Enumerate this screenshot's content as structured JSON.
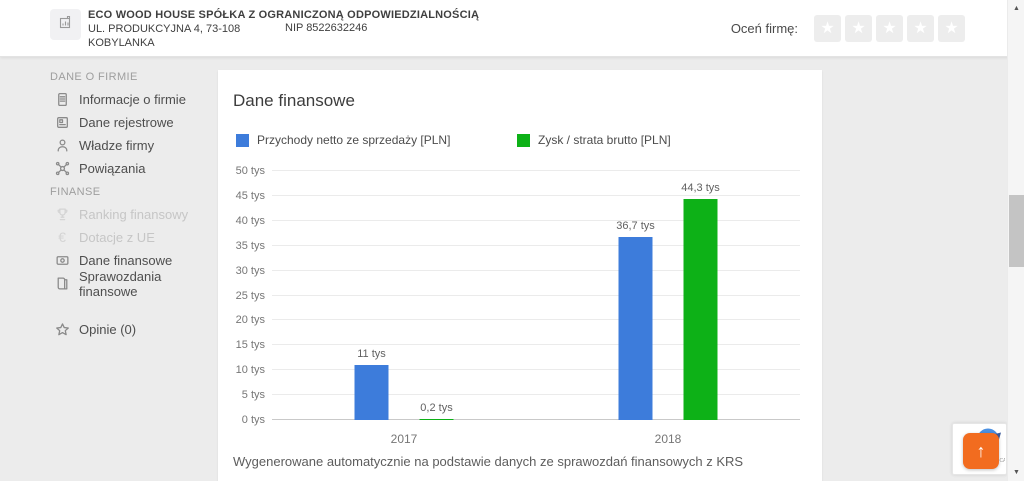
{
  "header": {
    "company_name": "ECO WOOD HOUSE SPÓŁKA Z OGRANICZONĄ ODPOWIEDZIALNOŚCIĄ",
    "address_line1": "UL. PRODUKCYJNA 4, 73-108",
    "address_line2": "KOBYLANKA",
    "nip": "NIP 8522632246",
    "rate_label": "Oceń firmę:",
    "rating_stars_total": 5,
    "rating_stars_filled": 0
  },
  "icons": {
    "star": "★",
    "up_arrow": "↑",
    "scroll_up": "▲",
    "scroll_down": "▼"
  },
  "sidebar": {
    "sections": [
      {
        "header": "DANE O FIRMIE",
        "items": [
          {
            "label": "Informacje o firmie",
            "icon": "document-icon",
            "disabled": false
          },
          {
            "label": "Dane rejestrowe",
            "icon": "registry-card-icon",
            "disabled": false
          },
          {
            "label": "Władze firmy",
            "icon": "person-icon",
            "disabled": false
          },
          {
            "label": "Powiązania",
            "icon": "connections-icon",
            "disabled": false
          }
        ]
      },
      {
        "header": "FINANSE",
        "items": [
          {
            "label": "Ranking finansowy",
            "icon": "trophy-icon",
            "disabled": true
          },
          {
            "label": "Dotacje z UE",
            "icon": "euro-icon",
            "disabled": true
          },
          {
            "label": "Dane finansowe",
            "icon": "banknote-icon",
            "disabled": false
          },
          {
            "label": "Sprawozdania finansowe",
            "icon": "report-icon",
            "disabled": false
          }
        ]
      }
    ],
    "footer_item": {
      "label": "Opinie (0)",
      "icon": "star-outline-icon"
    }
  },
  "main": {
    "title": "Dane finansowe",
    "caption": "Wygenerowane automatycznie na podstawie danych ze sprawozdań finansowych z KRS"
  },
  "chart_data": {
    "type": "bar",
    "title": "Dane finansowe",
    "categories": [
      "2017",
      "2018"
    ],
    "series": [
      {
        "name": "Przychody netto ze sprzedaży [PLN]",
        "color": "#3d7cdb",
        "values": [
          11,
          36.7
        ],
        "labels": [
          "11 tys",
          "36,7 tys"
        ]
      },
      {
        "name": "Zysk / strata brutto [PLN]",
        "color": "#0db117",
        "values": [
          0.2,
          44.3
        ],
        "labels": [
          "0,2 tys",
          "44,3 tys"
        ]
      }
    ],
    "xlabel": "",
    "ylabel": "",
    "ylim": [
      0,
      50
    ],
    "ytick_step": 5,
    "ytick_suffix": " tys",
    "grid": true,
    "legend_position": "top"
  },
  "recaptcha": {
    "label": "reCAPTCHA"
  }
}
